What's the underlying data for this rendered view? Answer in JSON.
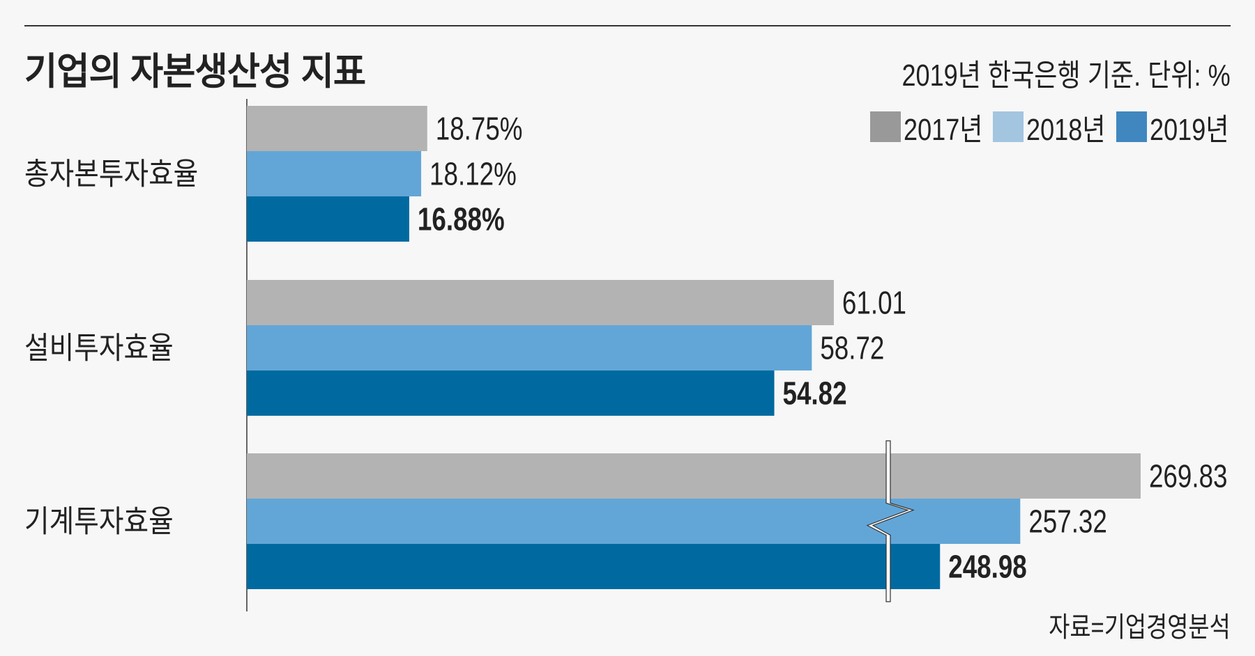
{
  "title": "기업의 자본생산성 지표",
  "subtitle": "2019년 한국은행 기준. 단위: %",
  "source": "자료=기업경영분석",
  "colors": {
    "2017년": "#b3b3b3",
    "2018년": "#62a6d7",
    "2019년": "#006aa0"
  },
  "legend": [
    {
      "label": "2017년",
      "color": "#999999"
    },
    {
      "label": "2018년",
      "color": "#a3c5e0"
    },
    {
      "label": "2019년",
      "color": "#3f87be"
    }
  ],
  "chart_data": {
    "type": "bar",
    "orientation": "horizontal",
    "title": "기업의 자본생산성 지표",
    "categories": [
      "총자본투자효율",
      "설비투자효율",
      "기계투자효율"
    ],
    "series": [
      {
        "name": "2017년",
        "values": [
          18.75,
          61.01,
          269.83
        ],
        "labels": [
          "18.75%",
          "61.01",
          "269.83"
        ]
      },
      {
        "name": "2018년",
        "values": [
          18.12,
          58.72,
          257.32
        ],
        "labels": [
          "18.12%",
          "58.72",
          "257.32"
        ]
      },
      {
        "name": "2019년",
        "values": [
          16.88,
          54.82,
          248.98
        ],
        "labels": [
          "16.88%",
          "54.82",
          "248.98"
        ]
      }
    ],
    "axis_break": {
      "category": "기계투자효율"
    },
    "legend_position": "top-right",
    "grid": false
  }
}
